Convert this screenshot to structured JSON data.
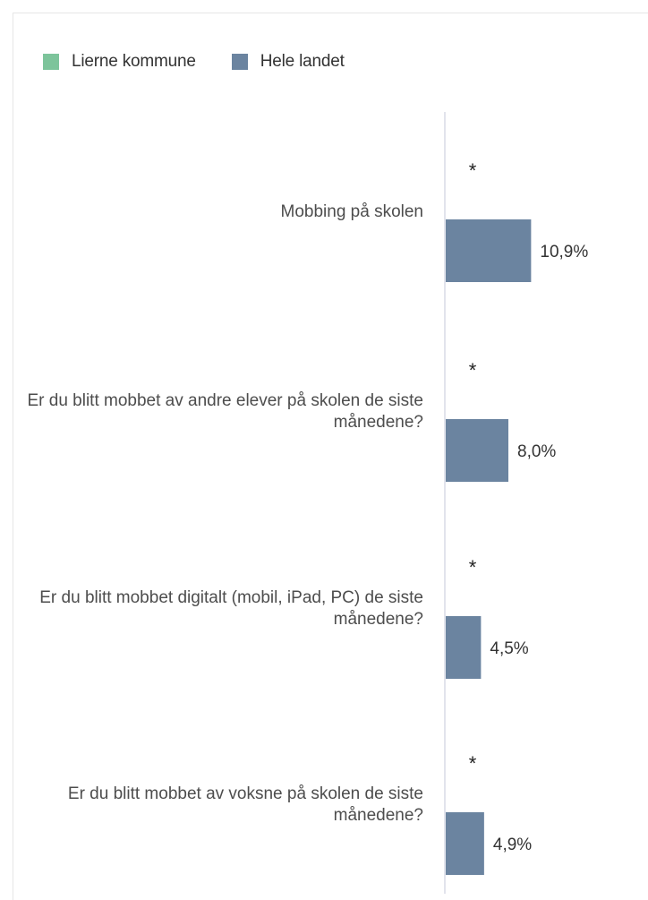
{
  "legend": [
    {
      "label": "Lierne kommune",
      "color": "#7dc49b"
    },
    {
      "label": "Hele landet",
      "color": "#6b84a0"
    }
  ],
  "chart_data": {
    "type": "bar",
    "orientation": "horizontal",
    "categories": [
      [
        "Mobbing på skolen"
      ],
      [
        "Er du blitt mobbet av andre elever på skolen de siste",
        "månedene?"
      ],
      [
        "Er du blitt mobbet digitalt (mobil, iPad, PC) de siste",
        "månedene?"
      ],
      [
        "Er du blitt mobbet av voksne på skolen de siste",
        "månedene?"
      ]
    ],
    "series": [
      {
        "name": "Lierne kommune",
        "color": "#7dc49b",
        "values": [
          null,
          null,
          null,
          null
        ],
        "labels": [
          "*",
          "*",
          "*",
          "*"
        ]
      },
      {
        "name": "Hele landet",
        "color": "#6b84a0",
        "values": [
          10.9,
          8.0,
          4.5,
          4.9
        ],
        "labels": [
          "10,9%",
          "8,0%",
          "4,5%",
          "4,9%"
        ]
      }
    ],
    "xlim": [
      0,
      100
    ],
    "grid": false,
    "legend_position": "top-left"
  }
}
